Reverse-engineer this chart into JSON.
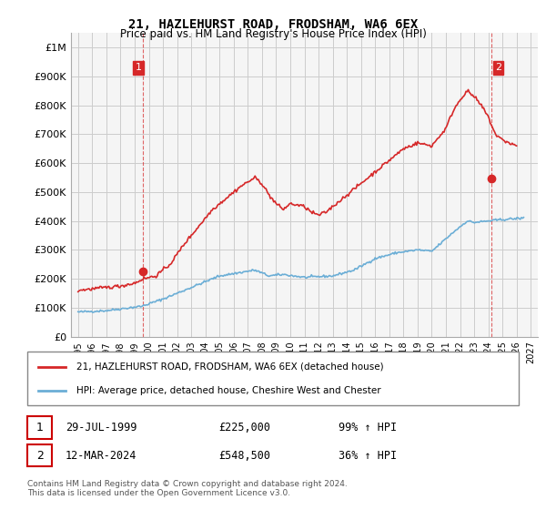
{
  "title": "21, HAZLEHURST ROAD, FRODSHAM, WA6 6EX",
  "subtitle": "Price paid vs. HM Land Registry's House Price Index (HPI)",
  "legend_line1": "21, HAZLEHURST ROAD, FRODSHAM, WA6 6EX (detached house)",
  "legend_line2": "HPI: Average price, detached house, Cheshire West and Chester",
  "transaction1_label": "1",
  "transaction1_date": "29-JUL-1999",
  "transaction1_price": "£225,000",
  "transaction1_hpi": "99% ↑ HPI",
  "transaction2_label": "2",
  "transaction2_date": "12-MAR-2024",
  "transaction2_price": "£548,500",
  "transaction2_hpi": "36% ↑ HPI",
  "footnote": "Contains HM Land Registry data © Crown copyright and database right 2024.\nThis data is licensed under the Open Government Licence v3.0.",
  "hpi_color": "#6baed6",
  "price_color": "#d62728",
  "marker_color": "#d62728",
  "vline_color": "#d62728",
  "grid_color": "#cccccc",
  "background_color": "#ffffff",
  "plot_bg_color": "#f5f5f5",
  "ylim": [
    0,
    1050000
  ],
  "yticks": [
    0,
    100000,
    200000,
    300000,
    400000,
    500000,
    600000,
    700000,
    800000,
    900000,
    1000000
  ],
  "xlim_start": 1994.5,
  "xlim_end": 2027.5
}
